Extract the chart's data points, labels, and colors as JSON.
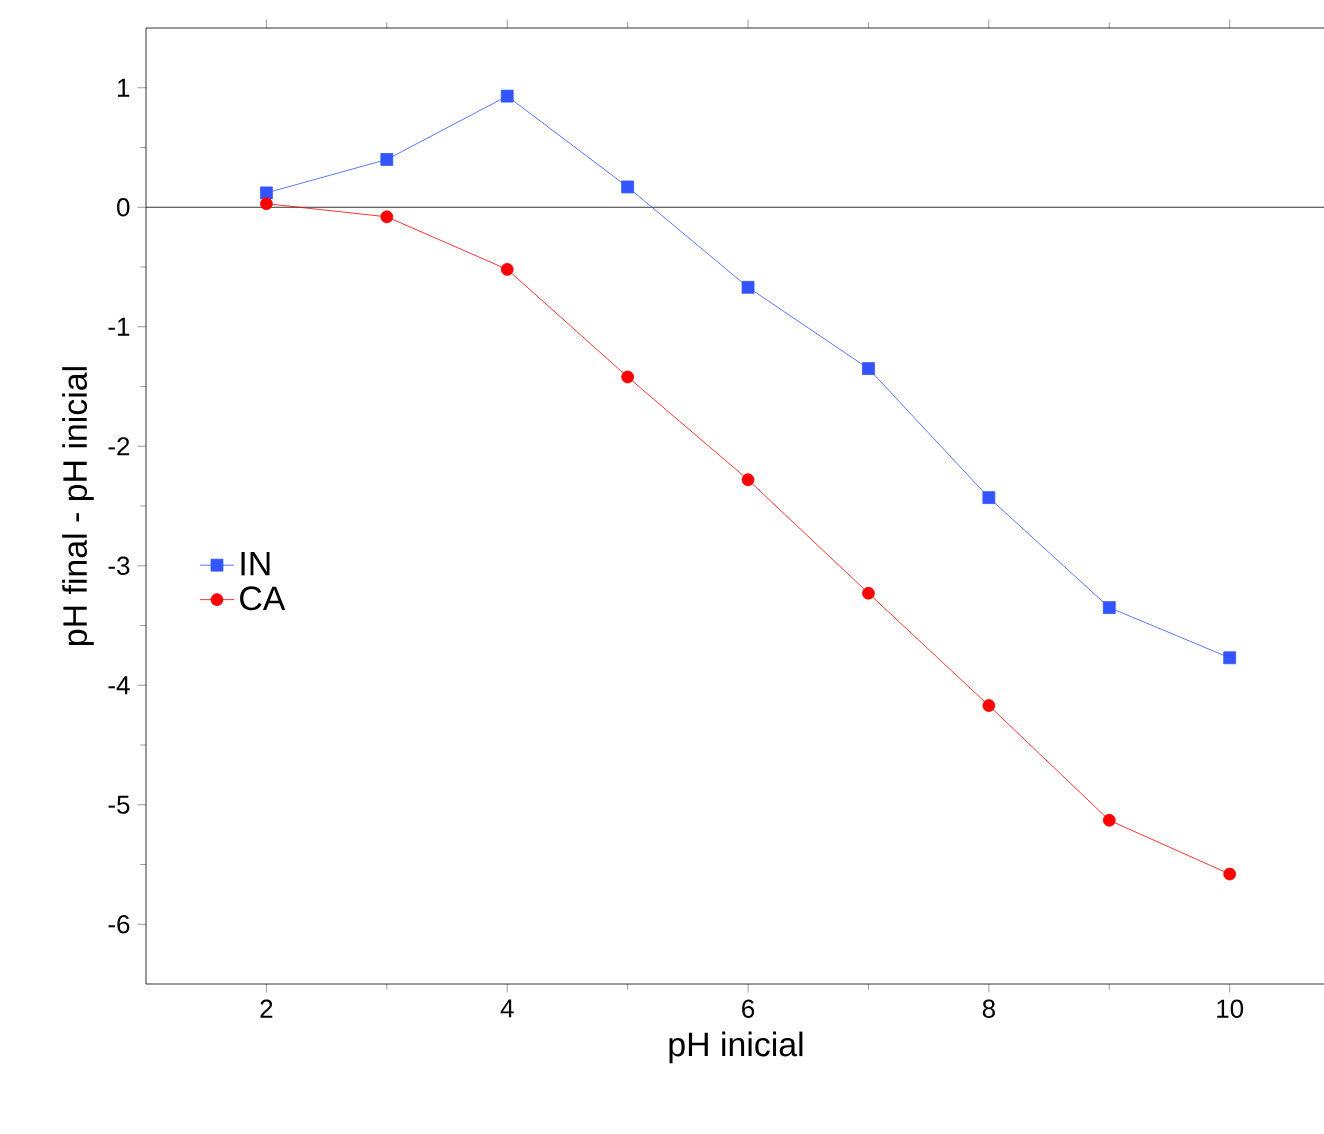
{
  "chart_data": {
    "type": "line",
    "xlabel": "pH inicial",
    "ylabel": "pH final - pH inicial",
    "x": [
      2,
      3,
      4,
      5,
      6,
      7,
      8,
      9,
      10
    ],
    "series": [
      {
        "name": "IN",
        "color": "#3355ff",
        "marker": "square",
        "values": [
          0.12,
          0.4,
          0.93,
          0.17,
          -0.67,
          -1.35,
          -2.43,
          -3.35,
          -3.77
        ]
      },
      {
        "name": "CA",
        "color": "#ff0000",
        "marker": "circle",
        "values": [
          0.03,
          -0.08,
          -0.52,
          -1.42,
          -2.28,
          -3.23,
          -4.17,
          -5.13,
          -5.58
        ]
      }
    ],
    "xlim": [
      1,
      10.8
    ],
    "ylim": [
      -6.5,
      1.5
    ],
    "xticks": [
      2,
      4,
      6,
      8,
      10
    ],
    "yticks": [
      -6,
      -5,
      -4,
      -3,
      -2,
      -1,
      0,
      1
    ],
    "ref_lines": [
      {
        "axis": "y",
        "value": 0,
        "color": "#000000"
      }
    ],
    "legend": "left",
    "grid": false,
    "line_style": "solid"
  }
}
